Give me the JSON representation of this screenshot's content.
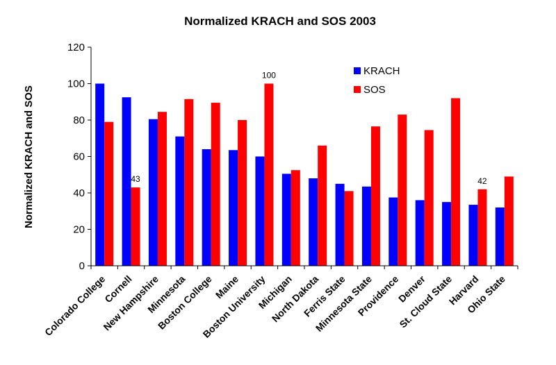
{
  "chart_data": {
    "type": "bar",
    "title": "Normalized KRACH and SOS 2003",
    "xlabel": "",
    "ylabel": "Normalized KRACH and SOS",
    "ylim": [
      0,
      120
    ],
    "yticks": [
      0,
      20,
      40,
      60,
      80,
      100,
      120
    ],
    "grid": false,
    "legend_position": "top-right",
    "categories": [
      "Colorado College",
      "Cornell",
      "New Hampshire",
      "Minnesota",
      "Boston College",
      "Maine",
      "Boston University",
      "Michigan",
      "North Dakota",
      "Ferris State",
      "Minnesota State",
      "Providence",
      "Denver",
      "St. Cloud State",
      "Harvard",
      "Ohio State"
    ],
    "series": [
      {
        "name": "KRACH",
        "color": "#0000ff",
        "values": [
          100,
          92.5,
          80.5,
          71,
          64,
          63.5,
          60,
          50.5,
          48,
          45,
          43.5,
          37.5,
          36,
          35,
          33.5,
          32
        ]
      },
      {
        "name": "SOS",
        "color": "#ff0000",
        "values": [
          79,
          43,
          84.5,
          91.5,
          89.5,
          80,
          100,
          52.5,
          66,
          41,
          76.5,
          83,
          74.5,
          92,
          42,
          49
        ]
      }
    ],
    "annotations": [
      {
        "text": "43",
        "series": "SOS",
        "category": "Cornell"
      },
      {
        "text": "100",
        "series": "SOS",
        "category": "Boston University"
      },
      {
        "text": "42",
        "series": "SOS",
        "category": "Harvard"
      }
    ]
  }
}
